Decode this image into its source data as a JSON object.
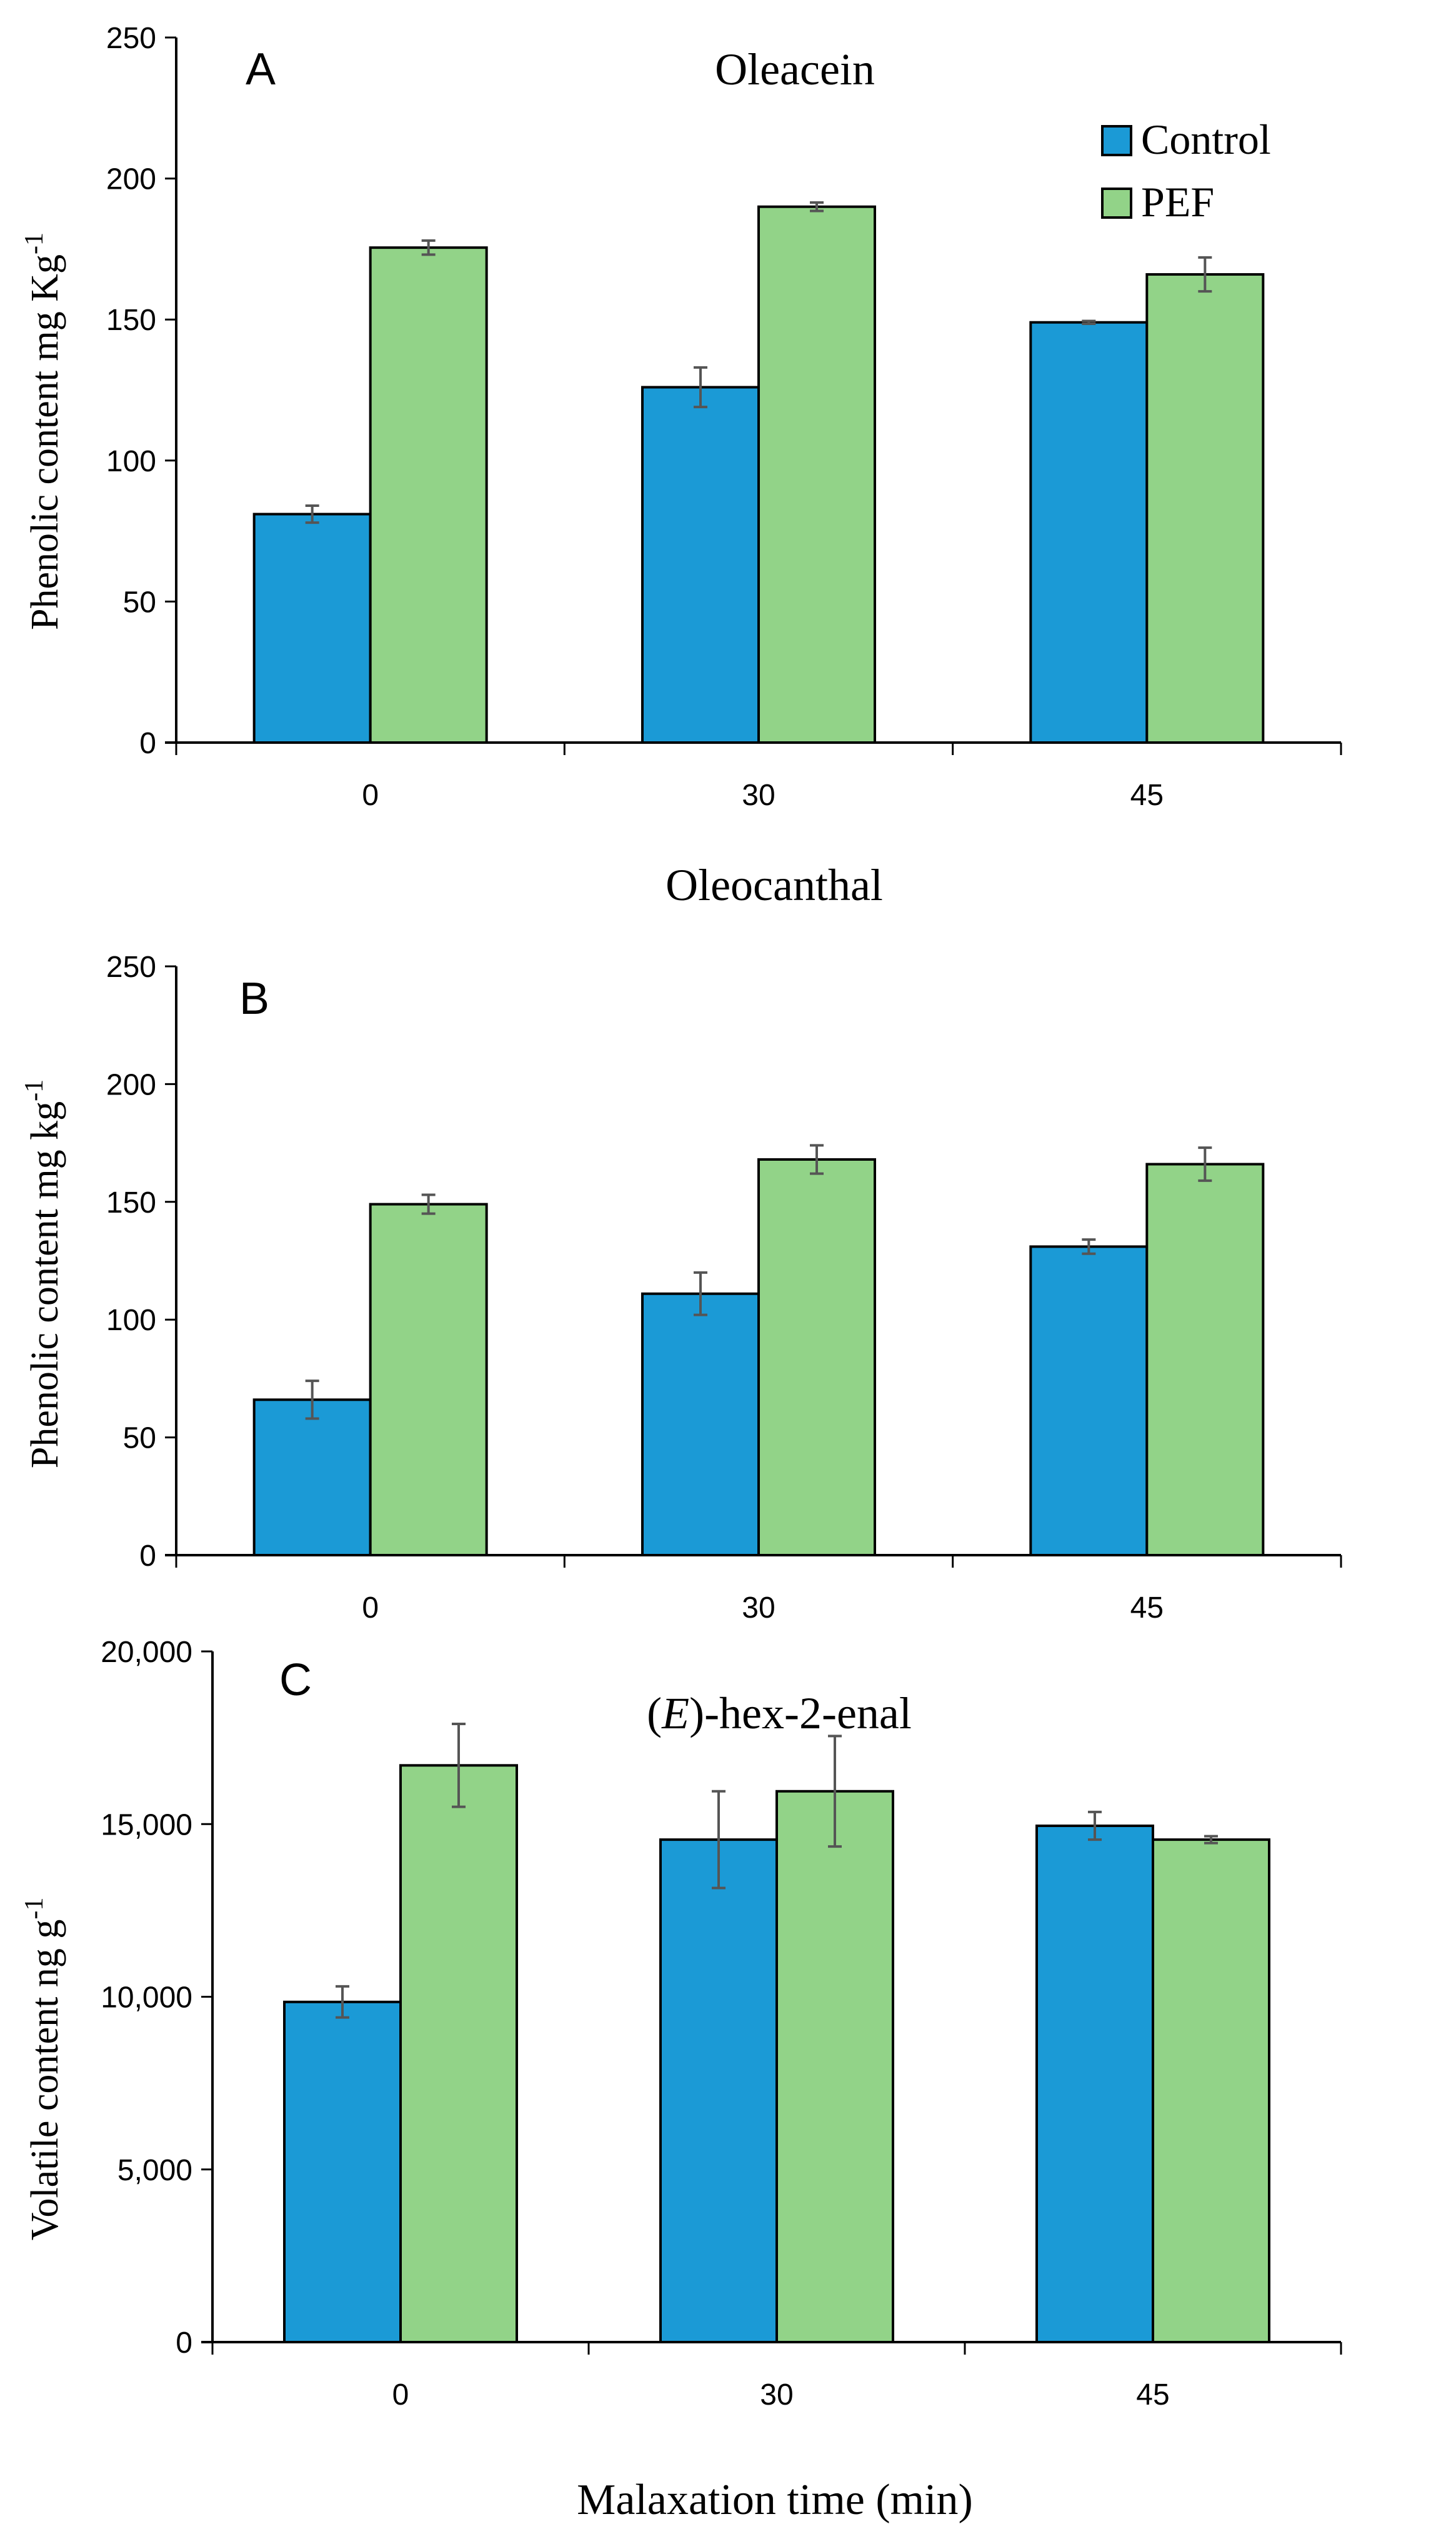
{
  "figure": {
    "xlabel": "Malaxation time (min)",
    "legend": [
      "Control",
      "PEF"
    ]
  },
  "colors": {
    "control": "#1b9ad6",
    "pef": "#92d388",
    "error": "#555555"
  },
  "chart_data": [
    {
      "type": "bar",
      "panel_label": "A",
      "title": "Oleacein",
      "ylabel": "Phenolic content mg Kg",
      "ylabel_sup": "-1",
      "categories": [
        "0",
        "30",
        "45"
      ],
      "ylim": [
        0,
        250
      ],
      "yticks": [
        0,
        50,
        100,
        150,
        200,
        250
      ],
      "ytick_labels": [
        "0",
        "50",
        "100",
        "150",
        "200",
        "250"
      ],
      "series": [
        {
          "name": "Control",
          "values": [
            81,
            126,
            149
          ],
          "errors": [
            3,
            7,
            0.5
          ]
        },
        {
          "name": "PEF",
          "values": [
            175.5,
            190,
            166
          ],
          "errors": [
            2.5,
            1.5,
            6
          ]
        }
      ]
    },
    {
      "type": "bar",
      "panel_label": "B",
      "title": "Oleocanthal",
      "ylabel": "Phenolic content  mg kg",
      "ylabel_sup": "-1",
      "categories": [
        "0",
        "30",
        "45"
      ],
      "ylim": [
        0,
        250
      ],
      "yticks": [
        0,
        50,
        100,
        150,
        200,
        250
      ],
      "ytick_labels": [
        "0",
        "50",
        "100",
        "150",
        "200",
        "250"
      ],
      "series": [
        {
          "name": "Control",
          "values": [
            66,
            111,
            131
          ],
          "errors": [
            8,
            9,
            3
          ]
        },
        {
          "name": "PEF",
          "values": [
            149,
            168,
            166
          ],
          "errors": [
            4,
            6,
            7
          ]
        }
      ]
    },
    {
      "type": "bar",
      "panel_label": "C",
      "title": "(E)-hex-2-enal",
      "title_prefix": "(",
      "title_italic": "E",
      "title_suffix": ")-hex-2-enal",
      "ylabel": "Volatile content ng g",
      "ylabel_sup": "-1",
      "categories": [
        "0",
        "30",
        "45"
      ],
      "ylim": [
        0,
        20000
      ],
      "yticks": [
        0,
        5000,
        10000,
        15000,
        20000
      ],
      "ytick_labels": [
        "0",
        "5,000",
        "10,000",
        "15,000",
        "20,000"
      ],
      "series": [
        {
          "name": "Control",
          "values": [
            9850,
            14550,
            14950
          ],
          "errors": [
            450,
            1400,
            400
          ]
        },
        {
          "name": "PEF",
          "values": [
            16700,
            15950,
            14550
          ],
          "errors": [
            1200,
            1600,
            100
          ]
        }
      ]
    }
  ]
}
